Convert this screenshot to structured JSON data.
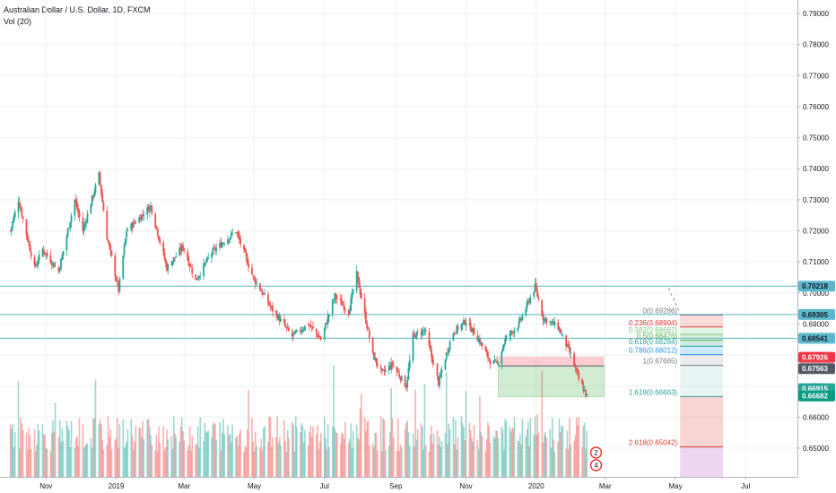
{
  "header": {
    "symbol_title": "Australian Dollar / U.S. Dollar, 1D, FXCM",
    "volume_label": "Vol (20)"
  },
  "colors": {
    "up": "#26a69a",
    "down": "#ef5350",
    "hline": "#5bb7cc",
    "grid": "#eef0f3",
    "fib_red": "#e53935",
    "fib_green": "#4caf50",
    "fib_teal": "#2aa198"
  },
  "chart_data": {
    "type": "candlestick",
    "x_tick_labels": [
      "Nov",
      "2019",
      "Mar",
      "May",
      "Jul",
      "Sep",
      "Nov",
      "2020",
      "Mar",
      "May",
      "Jul"
    ],
    "y_tick_labels": [
      "0.79000",
      "0.78000",
      "0.77000",
      "0.76000",
      "0.75000",
      "0.74000",
      "0.73000",
      "0.72000",
      "0.71000",
      "0.70000",
      "0.69000",
      "0.68000",
      "0.67000",
      "0.66000",
      "0.65000"
    ],
    "ylim": [
      0.642,
      0.795
    ],
    "price_path": [
      {
        "date": "2018-10-01",
        "price": 0.72
      },
      {
        "date": "2018-10-08",
        "price": 0.73
      },
      {
        "date": "2018-10-22",
        "price": 0.708
      },
      {
        "date": "2018-10-29",
        "price": 0.714
      },
      {
        "date": "2018-11-12",
        "price": 0.707
      },
      {
        "date": "2018-11-26",
        "price": 0.73
      },
      {
        "date": "2018-12-03",
        "price": 0.72
      },
      {
        "date": "2018-12-17",
        "price": 0.738
      },
      {
        "date": "2018-12-24",
        "price": 0.718
      },
      {
        "date": "2019-01-03",
        "price": 0.701
      },
      {
        "date": "2019-01-10",
        "price": 0.72
      },
      {
        "date": "2019-01-31",
        "price": 0.728
      },
      {
        "date": "2019-02-14",
        "price": 0.708
      },
      {
        "date": "2019-02-28",
        "price": 0.715
      },
      {
        "date": "2019-03-11",
        "price": 0.704
      },
      {
        "date": "2019-03-25",
        "price": 0.713
      },
      {
        "date": "2019-04-15",
        "price": 0.72
      },
      {
        "date": "2019-04-30",
        "price": 0.705
      },
      {
        "date": "2019-05-16",
        "price": 0.695
      },
      {
        "date": "2019-06-03",
        "price": 0.686
      },
      {
        "date": "2019-06-17",
        "price": 0.69
      },
      {
        "date": "2019-06-28",
        "price": 0.685
      },
      {
        "date": "2019-07-10",
        "price": 0.699
      },
      {
        "date": "2019-07-22",
        "price": 0.694
      },
      {
        "date": "2019-07-29",
        "price": 0.706
      },
      {
        "date": "2019-08-12",
        "price": 0.68
      },
      {
        "date": "2019-08-20",
        "price": 0.674
      },
      {
        "date": "2019-08-29",
        "price": 0.677
      },
      {
        "date": "2019-09-10",
        "price": 0.67
      },
      {
        "date": "2019-09-16",
        "price": 0.686
      },
      {
        "date": "2019-09-26",
        "price": 0.688
      },
      {
        "date": "2019-10-08",
        "price": 0.671
      },
      {
        "date": "2019-10-20",
        "price": 0.687
      },
      {
        "date": "2019-11-01",
        "price": 0.691
      },
      {
        "date": "2019-11-12",
        "price": 0.685
      },
      {
        "date": "2019-11-22",
        "price": 0.678
      },
      {
        "date": "2019-11-28",
        "price": 0.677
      },
      {
        "date": "2019-12-05",
        "price": 0.685
      },
      {
        "date": "2019-12-17",
        "price": 0.69
      },
      {
        "date": "2019-12-31",
        "price": 0.702
      },
      {
        "date": "2020-01-07",
        "price": 0.692
      },
      {
        "date": "2020-01-20",
        "price": 0.689
      },
      {
        "date": "2020-01-31",
        "price": 0.68
      },
      {
        "date": "2020-02-07",
        "price": 0.672
      },
      {
        "date": "2020-02-14",
        "price": 0.6668
      }
    ],
    "horizontal_levels": [
      0.70218,
      0.69305,
      0.68541
    ],
    "price_labels": [
      {
        "text": "0.70218",
        "price": 0.70218,
        "bg": "#5bb7cc",
        "fg": "#131722"
      },
      {
        "text": "0.69305",
        "price": 0.69305,
        "bg": "#5bb7cc",
        "fg": "#131722"
      },
      {
        "text": "0.68541",
        "price": 0.68541,
        "bg": "#5bb7cc",
        "fg": "#131722"
      },
      {
        "text": "0.67926",
        "price": 0.67926,
        "bg": "#f23645",
        "fg": "#ffffff"
      },
      {
        "text": "0.67563",
        "price": 0.67563,
        "bg": "#535a63",
        "fg": "#ffffff"
      },
      {
        "text": "0.66915",
        "price": 0.66915,
        "bg": "#26a69a",
        "fg": "#ffffff"
      },
      {
        "text": "0.66682",
        "price": 0.66682,
        "bg": "#089981",
        "fg": "#ffffff"
      }
    ],
    "fib_levels": [
      {
        "label": "0(0.69286)",
        "price": 0.69286,
        "color": "#787b86"
      },
      {
        "label": "0.236(0.68904)",
        "price": 0.68904,
        "color": "#e53935"
      },
      {
        "label": "0.382(0.68667)",
        "price": 0.68667,
        "color": "#81c784"
      },
      {
        "label": "0.5(0.68476)",
        "price": 0.68476,
        "color": "#4caf50"
      },
      {
        "label": "0.618(0.68284)",
        "price": 0.68284,
        "color": "#2aa198"
      },
      {
        "label": "0.786(0.68012)",
        "price": 0.68012,
        "color": "#2196f3"
      },
      {
        "label": "1(0.67665)",
        "price": 0.67665,
        "color": "#787b86"
      },
      {
        "label": "1.618(0.66663)",
        "price": 0.66663,
        "color": "#2aa198"
      },
      {
        "label": "2.618(0.65042)",
        "price": 0.65042,
        "color": "#e53935"
      }
    ],
    "position_tool": {
      "start_date": "2019-11-29",
      "end_date": "2020-02-29",
      "entry": 0.6765,
      "stop": 0.6795,
      "target": 0.6665
    },
    "volume_badges": [
      "2",
      "4"
    ]
  }
}
